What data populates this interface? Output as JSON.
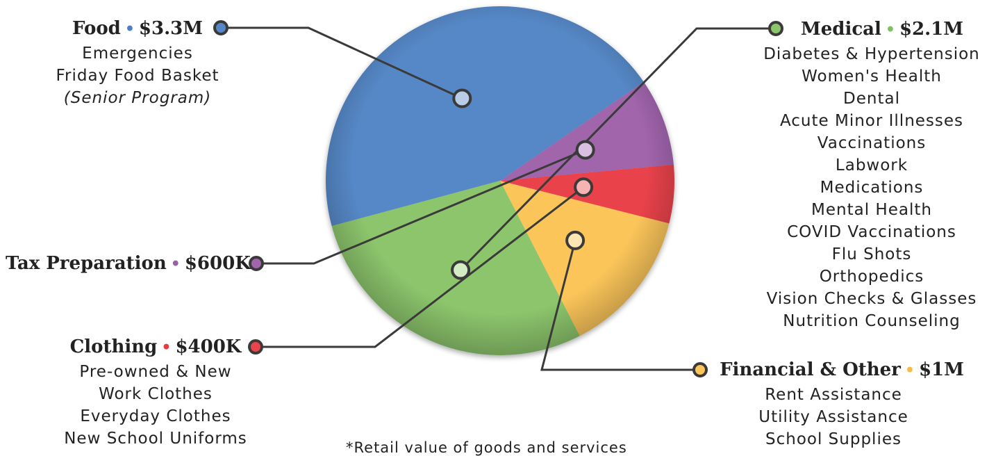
{
  "footnote": "*Retail value of goods and services",
  "chart_data": {
    "type": "pie",
    "title": "",
    "slices": [
      {
        "label": "Food",
        "value": 3.3,
        "value_label": "$3.3M",
        "color": "#5688c7",
        "marker_color": "#b9cce8"
      },
      {
        "label": "Medical",
        "value": 2.1,
        "value_label": "$2.1M",
        "color": "#8cc56c",
        "marker_color": "#d3ecc4"
      },
      {
        "label": "Financial & Other",
        "value": 1.0,
        "value_label": "$1M",
        "color": "#fbc55a",
        "marker_color": "#fde5b4"
      },
      {
        "label": "Clothing",
        "value": 0.4,
        "value_label": "$400K",
        "color": "#e9434b",
        "marker_color": "#f6b3b3"
      },
      {
        "label": "Tax Preparation",
        "value": 0.6,
        "value_label": "$600K",
        "color": "#a165ac",
        "marker_color": "#d9bfe0"
      }
    ]
  },
  "categories": {
    "food": {
      "name": "Food",
      "dot_color": "#4a7fcb",
      "amount": "$3.3M",
      "items": [
        "Emergencies",
        "Friday Food Basket"
      ],
      "note": "(Senior Program)"
    },
    "medical": {
      "name": "Medical",
      "dot_color": "#7fc160",
      "amount": "$2.1M",
      "items": [
        "Diabetes & Hypertension",
        "Women's Health",
        "Dental",
        "Acute Minor Illnesses",
        "Vaccinations",
        "Labwork",
        "Medications",
        "Mental Health",
        "COVID Vaccinations",
        "Flu Shots",
        "Orthopedics",
        "Vision Checks & Glasses",
        "Nutrition Counseling"
      ]
    },
    "financial": {
      "name": "Financial & Other",
      "dot_color": "#f8bb45",
      "amount": "$1M",
      "items": [
        "Rent Assistance",
        "Utility Assistance",
        "School Supplies"
      ]
    },
    "clothing": {
      "name": "Clothing",
      "dot_color": "#e33b42",
      "amount": "$400K",
      "items": [
        "Pre-owned & New",
        "Work Clothes",
        "Everyday Clothes",
        "New School Uniforms"
      ]
    },
    "tax": {
      "name": "Tax Preparation",
      "dot_color": "#9d5fa8",
      "amount": "$600K"
    }
  }
}
